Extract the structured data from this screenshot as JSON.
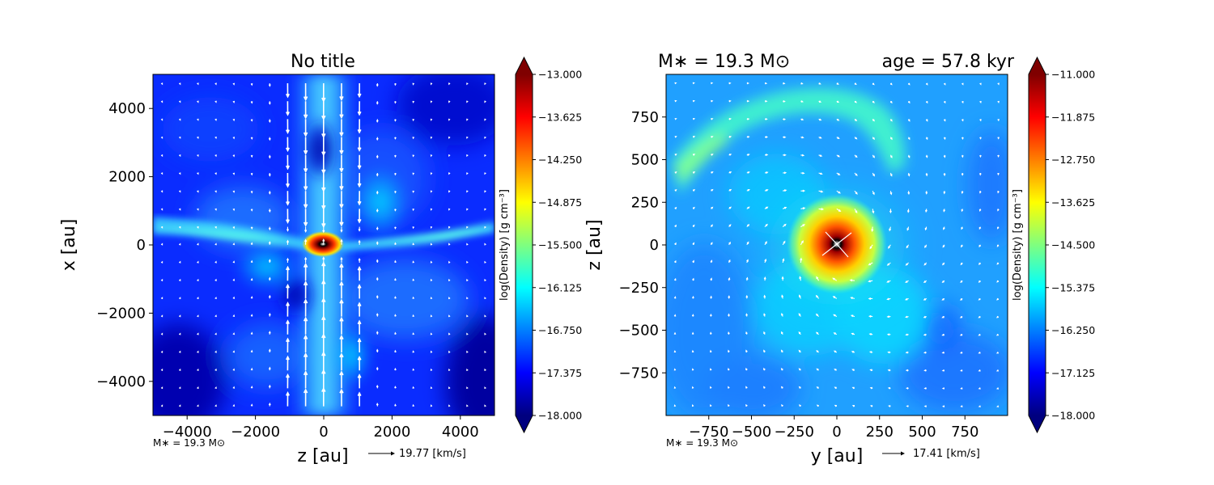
{
  "colormap": [
    "#00007f",
    "#0000ff",
    "#007fff",
    "#00ffff",
    "#7fff7f",
    "#ffff00",
    "#ff7f00",
    "#ff0000",
    "#7f0000"
  ],
  "chart_data": [
    {
      "type": "heatmap",
      "title": "No title",
      "xlabel": "z [au]",
      "ylabel": "x [au]",
      "xlim": [
        -5000,
        5000
      ],
      "ylim": [
        -5000,
        5000
      ],
      "xticks": [
        -4000,
        -2000,
        0,
        2000,
        4000
      ],
      "yticks": [
        -4000,
        -2000,
        0,
        2000,
        4000
      ],
      "xtick_labels": [
        "−4000",
        "−2000",
        "0",
        "2000",
        "4000"
      ],
      "ytick_labels": [
        "−4000",
        "−2000",
        "0",
        "2000",
        "4000"
      ],
      "colorbar": {
        "label": "log(Density) [g cm⁻³]",
        "range": [
          -18.0,
          -13.0
        ],
        "ticks": [
          "−13.000",
          "−13.625",
          "−14.250",
          "−14.875",
          "−15.500",
          "−16.125",
          "−16.750",
          "−17.375",
          "−18.000"
        ]
      },
      "mass_note": "M∗ = 19.3 M⊙",
      "quiver_key": "19.77 [km/s]"
    },
    {
      "type": "heatmap",
      "title_left": "M∗ = 19.3 M⊙",
      "title_right": "age = 57.8 kyr",
      "xlabel": "y [au]",
      "ylabel": "z [au]",
      "xlim": [
        -1000,
        1000
      ],
      "ylim": [
        -1000,
        1000
      ],
      "xticks": [
        -750,
        -500,
        -250,
        0,
        250,
        500,
        750
      ],
      "yticks": [
        -750,
        -500,
        -250,
        0,
        250,
        500,
        750
      ],
      "xtick_labels": [
        "−750",
        "−500",
        "−250",
        "0",
        "250",
        "500",
        "750"
      ],
      "ytick_labels": [
        "−750",
        "−500",
        "−250",
        "0",
        "250",
        "500",
        "750"
      ],
      "colorbar": {
        "label": "log(Density) [g cm⁻³]",
        "range": [
          -18.0,
          -11.0
        ],
        "ticks": [
          "−11.000",
          "−11.875",
          "−12.750",
          "−13.625",
          "−14.500",
          "−15.375",
          "−16.250",
          "−17.125",
          "−18.000"
        ]
      },
      "mass_note": "M∗ = 19.3 M⊙",
      "quiver_key": "17.41 [km/s]"
    }
  ]
}
